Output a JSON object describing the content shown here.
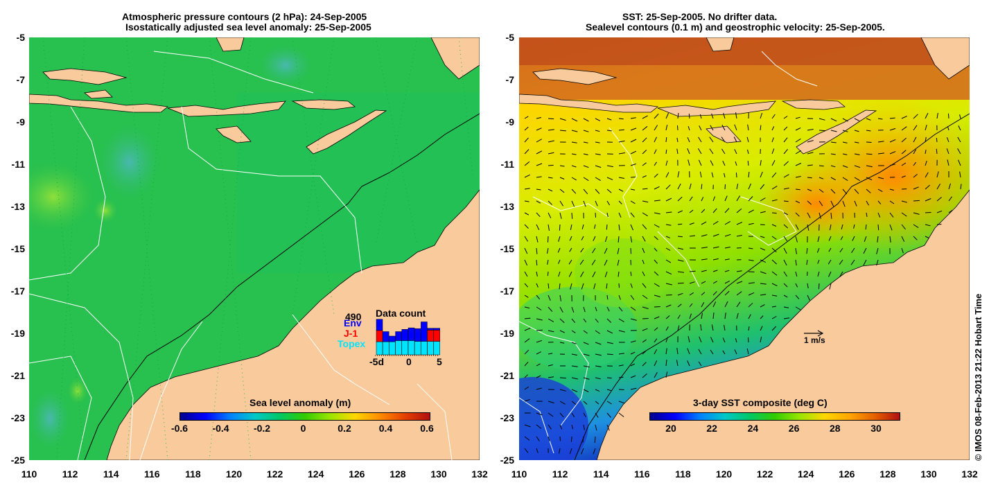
{
  "left_panel": {
    "title_line1": "Atmospheric pressure contours (2 hPa): 24-Sep-2005",
    "title_line2": "Isostatically adjusted sea level anomaly: 25-Sep-2005",
    "colorbar_title": "Sea level anomaly (m)",
    "colorbar_ticks": [
      "-0.6",
      "-0.4",
      "-0.2",
      "0",
      "0.2",
      "0.4",
      "0.6"
    ],
    "colorbar_colors": [
      "#00008b",
      "#0000ff",
      "#0080ff",
      "#00c8c8",
      "#00c864",
      "#33cc00",
      "#99e600",
      "#ffd700",
      "#ff8c00",
      "#e64000",
      "#b01010"
    ],
    "data_count": {
      "title": "Data count",
      "max_label": "490",
      "legend": [
        "Env",
        "J-1",
        "Topex"
      ],
      "legend_colors": [
        "#0000ff",
        "#ff0000",
        "#00e5ff"
      ],
      "axis_labels": [
        "-5d",
        "0",
        "5"
      ]
    }
  },
  "right_panel": {
    "title_line1": "SST: 25-Sep-2005. No drifter data.",
    "title_line2": "Sealevel contours (0.1 m) and geostrophic velocity: 25-Sep-2005.",
    "colorbar_title": "3-day SST composite (deg C)",
    "colorbar_ticks": [
      "20",
      "22",
      "24",
      "26",
      "28",
      "30"
    ],
    "colorbar_colors": [
      "#00008b",
      "#0000ff",
      "#0080ff",
      "#00c8c8",
      "#00c864",
      "#33cc00",
      "#99e600",
      "#ffd700",
      "#ffa500",
      "#e66000",
      "#b01010"
    ],
    "scale_label": "1 m/s"
  },
  "axes": {
    "x_ticks": [
      "110",
      "112",
      "114",
      "116",
      "118",
      "120",
      "122",
      "124",
      "126",
      "128",
      "130",
      "132"
    ],
    "y_ticks": [
      "-5",
      "-7",
      "-9",
      "-11",
      "-13",
      "-15",
      "-17",
      "-19",
      "-21",
      "-23",
      "-25"
    ]
  },
  "credit": "© IMOS 08-Feb-2013 21:22 Hobart Time",
  "colors": {
    "land": "#f9cb9c",
    "sea_low": "#1fbf5a",
    "sea_high": "#ff9a1a"
  }
}
